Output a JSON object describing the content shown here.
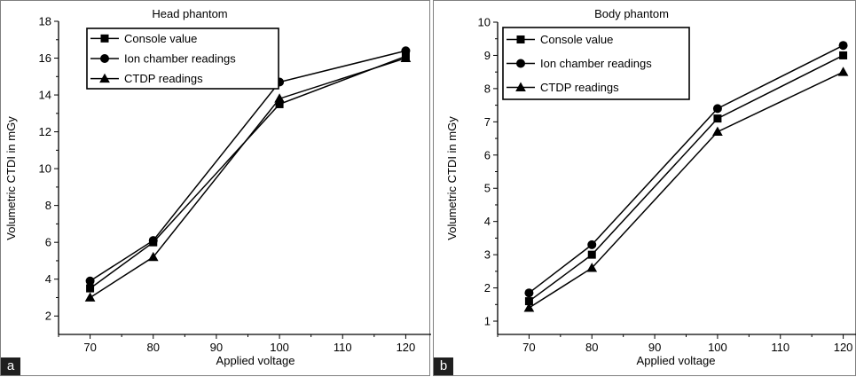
{
  "chart_data": [
    {
      "type": "line",
      "panel_label": "a",
      "title": "Head phantom",
      "xlabel": "Applied voltage",
      "ylabel": "Volumetric CTDI in mGy",
      "xlim": [
        65,
        125
      ],
      "ylim": [
        1,
        18
      ],
      "xticks": [
        70,
        80,
        90,
        100,
        110,
        120
      ],
      "yticks": [
        2,
        4,
        6,
        8,
        10,
        12,
        14,
        16,
        18
      ],
      "x": [
        70,
        80,
        100,
        120
      ],
      "legend_position": "top",
      "series": [
        {
          "name": "Console value",
          "marker": "square",
          "values": [
            3.5,
            6.0,
            13.5,
            16.1
          ]
        },
        {
          "name": "Ion chamber readings",
          "marker": "circle",
          "values": [
            3.9,
            6.1,
            14.7,
            16.4
          ]
        },
        {
          "name": "CTDP readings",
          "marker": "triangle",
          "values": [
            3.0,
            5.2,
            13.8,
            16.0
          ]
        }
      ]
    },
    {
      "type": "line",
      "panel_label": "b",
      "title": "Body phantom",
      "xlabel": "Applied voltage",
      "ylabel": "Volumetric CTDI in mGy",
      "xlim": [
        65,
        125
      ],
      "ylim": [
        0.6,
        10
      ],
      "xticks": [
        70,
        80,
        90,
        100,
        110,
        120
      ],
      "yticks": [
        1,
        2,
        3,
        4,
        5,
        6,
        7,
        8,
        9,
        10
      ],
      "x": [
        70,
        80,
        100,
        120
      ],
      "legend_position": "top",
      "series": [
        {
          "name": "Console value",
          "marker": "square",
          "values": [
            1.6,
            3.0,
            7.1,
            9.0
          ]
        },
        {
          "name": "Ion chamber readings",
          "marker": "circle",
          "values": [
            1.85,
            3.3,
            7.4,
            9.3
          ]
        },
        {
          "name": "CTDP readings",
          "marker": "triangle",
          "values": [
            1.4,
            2.6,
            6.7,
            8.5
          ]
        }
      ]
    }
  ]
}
